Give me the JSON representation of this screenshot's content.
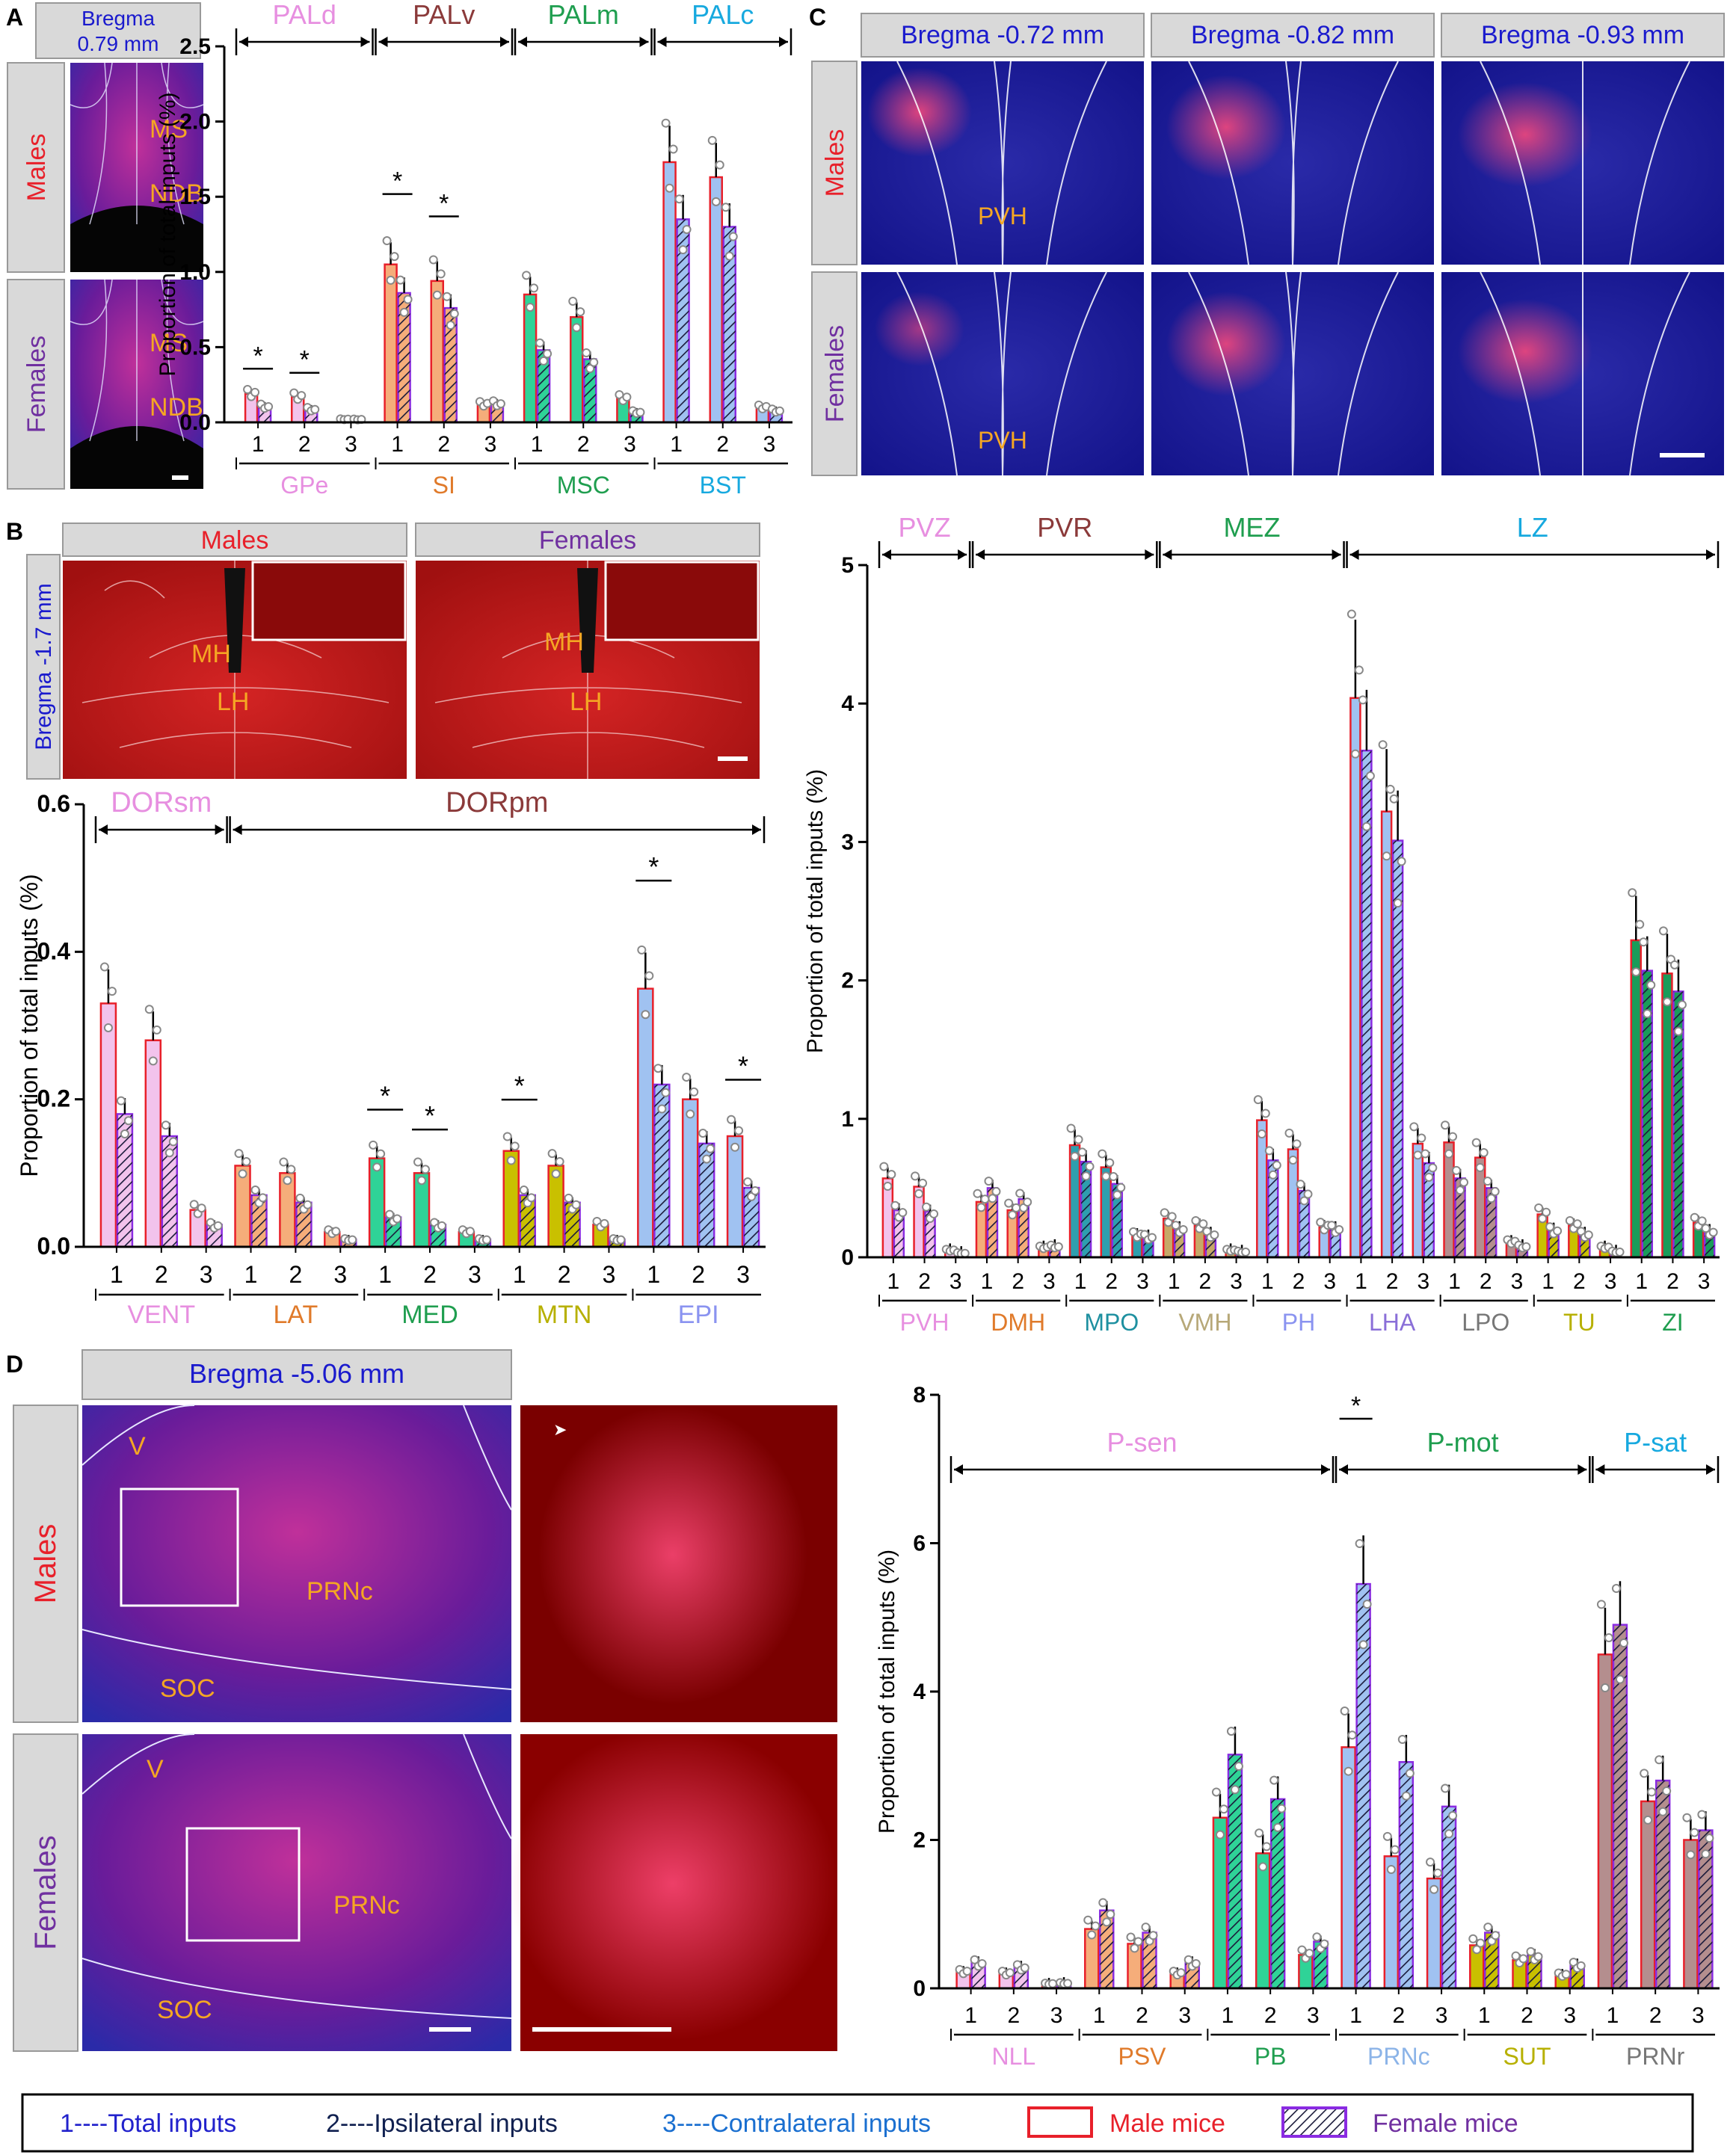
{
  "colors": {
    "pale_pink": "#f2c3ec",
    "orange": "#f5ad7a",
    "green": "#2fd397",
    "blue": "#a0c2f1",
    "gold": "#c9c000",
    "lz_green": "#1a9c5a",
    "teal_bar": "#2e9fae",
    "brown_bar": "#b48e8e",
    "tan_bar": "#c6a868",
    "male_edge": "#e8202a",
    "female_edge": "#8a2be2",
    "label_pink": "#e78fe0",
    "label_brown": "#8b3a3a",
    "label_green": "#1f9e4f",
    "label_cyan": "#17a9df",
    "label_orange": "#e07a2a",
    "label_olive": "#b7b000",
    "label_periwinkle": "#8a93f0",
    "label_teal": "#1e90a0",
    "label_khaki": "#b7a878",
    "label_violet": "#8a6fd8",
    "label_gray": "#777777",
    "label_lightblue": "#8cb4e8",
    "red": "#e8202a",
    "purple": "#7030a0",
    "navy": "#1a1acd",
    "micro_bg": "#1a1a8c",
    "legend_blue": "#2222cc",
    "legend_dark": "#102050",
    "legend_cyan": "#1a6fd0"
  },
  "panels": {
    "A": {
      "letter": "A",
      "bregma": [
        "Bregma",
        "0.79 mm"
      ],
      "row_labels": {
        "top": "Males",
        "bottom": "Females"
      },
      "region_labels": {
        "MS": "MS",
        "NDB": "NDB"
      }
    },
    "B": {
      "letter": "B",
      "col_labels": {
        "left": "Males",
        "right": "Females"
      },
      "bregma": "Bregma -1.7 mm",
      "region_labels": {
        "MH": "MH",
        "LH": "LH"
      }
    },
    "C": {
      "letter": "C",
      "bregmas": [
        "Bregma -0.72 mm",
        "Bregma -0.82 mm",
        "Bregma -0.93 mm"
      ],
      "row_labels": {
        "top": "Males",
        "bottom": "Females"
      },
      "region_label": "PVH"
    },
    "D": {
      "letter": "D",
      "bregma": "Bregma -5.06 mm",
      "row_labels": {
        "top": "Males",
        "bottom": "Females"
      },
      "region_labels": {
        "V": "V",
        "PRNc": "PRNc",
        "SOC": "SOC"
      }
    }
  },
  "chart_data": [
    {
      "id": "A",
      "type": "bar",
      "ylabel": "Proportion of total inputs (%)",
      "ylim": [
        0,
        2.5
      ],
      "yticks": [
        "0.0",
        "0.5",
        "1.0",
        "1.5",
        "2.0",
        "2.5"
      ],
      "ytick_values": [
        0,
        0.5,
        1.0,
        1.5,
        2.0,
        2.5
      ],
      "subcategories": [
        "1",
        "2",
        "3"
      ],
      "groups": [
        {
          "name": "GPe",
          "values_m": [
            0.19,
            0.17,
            0.02
          ],
          "values_f": [
            0.11,
            0.09,
            0.02
          ]
        },
        {
          "name": "SI",
          "values_m": [
            1.05,
            0.94,
            0.12
          ],
          "values_f": [
            0.86,
            0.76,
            0.13
          ]
        },
        {
          "name": "MSC",
          "values_m": [
            0.85,
            0.7,
            0.16
          ],
          "values_f": [
            0.48,
            0.42,
            0.07
          ]
        },
        {
          "name": "BST",
          "values_m": [
            1.73,
            1.63,
            0.1
          ],
          "values_f": [
            1.35,
            1.3,
            0.08
          ]
        }
      ],
      "top_labels": [
        "PALd",
        "PALv",
        "PALm",
        "PALc"
      ],
      "significance": "*"
    },
    {
      "id": "B",
      "type": "bar",
      "ylabel": "Proportion of total inputs (%)",
      "ylim": [
        0,
        0.6
      ],
      "yticks": [
        "0.0",
        "0.2",
        "0.4",
        "0.6"
      ],
      "ytick_values": [
        0,
        0.2,
        0.4,
        0.6
      ],
      "subcategories": [
        "1",
        "2",
        "3"
      ],
      "groups": [
        {
          "name": "VENT",
          "values_m": [
            0.33,
            0.28,
            0.05
          ],
          "values_f": [
            0.18,
            0.15,
            0.03
          ]
        },
        {
          "name": "LAT",
          "values_m": [
            0.11,
            0.1,
            0.02
          ],
          "values_f": [
            0.07,
            0.06,
            0.01
          ]
        },
        {
          "name": "MED",
          "values_m": [
            0.12,
            0.1,
            0.02
          ],
          "values_f": [
            0.04,
            0.03,
            0.01
          ]
        },
        {
          "name": "MTN",
          "values_m": [
            0.13,
            0.11,
            0.03
          ],
          "values_f": [
            0.07,
            0.06,
            0.01
          ]
        },
        {
          "name": "EPI",
          "values_m": [
            0.35,
            0.2,
            0.15
          ],
          "values_f": [
            0.22,
            0.14,
            0.08
          ]
        }
      ],
      "top_labels": [
        "DORsm",
        "DORpm"
      ],
      "significance": "*"
    },
    {
      "id": "C",
      "type": "bar",
      "ylabel": "Proportion of total inputs (%)",
      "ylim": [
        0,
        5
      ],
      "yticks": [
        "0",
        "1",
        "2",
        "3",
        "4",
        "5"
      ],
      "ytick_values": [
        0,
        1,
        2,
        3,
        4,
        5
      ],
      "subcategories": [
        "1",
        "2",
        "3"
      ],
      "groups": [
        {
          "name": "PVH",
          "values_m": [
            0.57,
            0.51,
            0.05
          ],
          "values_f": [
            0.34,
            0.33,
            0.03
          ]
        },
        {
          "name": "DMH",
          "values_m": [
            0.4,
            0.34,
            0.07
          ],
          "values_f": [
            0.5,
            0.42,
            0.08
          ]
        },
        {
          "name": "MPO",
          "values_m": [
            0.81,
            0.65,
            0.16
          ],
          "values_f": [
            0.69,
            0.53,
            0.15
          ]
        },
        {
          "name": "VMH",
          "values_m": [
            0.28,
            0.23,
            0.05
          ],
          "values_f": [
            0.21,
            0.17,
            0.04
          ]
        },
        {
          "name": "PH",
          "values_m": [
            0.99,
            0.78,
            0.22
          ],
          "values_f": [
            0.7,
            0.48,
            0.21
          ]
        },
        {
          "name": "LHA",
          "values_m": [
            4.04,
            3.22,
            0.82
          ],
          "values_f": [
            3.66,
            3.01,
            0.68
          ]
        },
        {
          "name": "LPO",
          "values_m": [
            0.83,
            0.72,
            0.11
          ],
          "values_f": [
            0.57,
            0.5,
            0.08
          ]
        },
        {
          "name": "TU",
          "values_m": [
            0.31,
            0.23,
            0.07
          ],
          "values_f": [
            0.2,
            0.17,
            0.04
          ]
        },
        {
          "name": "ZI",
          "values_m": [
            2.29,
            2.05,
            0.25
          ],
          "values_f": [
            2.07,
            1.92,
            0.19
          ]
        }
      ],
      "top_labels": [
        "PVZ",
        "PVR",
        "MEZ",
        "LZ"
      ]
    },
    {
      "id": "D",
      "type": "bar",
      "ylabel": "Proportion of total inputs (%)",
      "ylim": [
        0,
        8
      ],
      "yticks": [
        "0",
        "2",
        "4",
        "6",
        "8"
      ],
      "ytick_values": [
        0,
        2,
        4,
        6,
        8
      ],
      "subcategories": [
        "1",
        "2",
        "3"
      ],
      "groups": [
        {
          "name": "NLL",
          "values_m": [
            0.22,
            0.2,
            0.06
          ],
          "values_f": [
            0.35,
            0.29,
            0.07
          ]
        },
        {
          "name": "PSV",
          "values_m": [
            0.8,
            0.6,
            0.2
          ],
          "values_f": [
            1.05,
            0.75,
            0.35
          ]
        },
        {
          "name": "PB",
          "values_m": [
            2.3,
            1.82,
            0.45
          ],
          "values_f": [
            3.15,
            2.55,
            0.63
          ]
        },
        {
          "name": "PRNc",
          "values_m": [
            3.25,
            1.78,
            1.48
          ],
          "values_f": [
            5.45,
            3.05,
            2.45
          ]
        },
        {
          "name": "SUT",
          "values_m": [
            0.58,
            0.38,
            0.18
          ],
          "values_f": [
            0.75,
            0.45,
            0.32
          ]
        },
        {
          "name": "PRNr",
          "values_m": [
            4.5,
            2.52,
            2.0
          ],
          "values_f": [
            4.9,
            2.8,
            2.13
          ]
        }
      ],
      "top_labels": [
        "P-sen",
        "P-mot",
        "P-sat"
      ],
      "significance": "*"
    }
  ],
  "legend": {
    "total": "1----Total inputs",
    "ipsi": "2----Ipsilateral inputs",
    "contra": "3----Contralateral inputs",
    "male": "Male mice",
    "female": "Female mice"
  }
}
